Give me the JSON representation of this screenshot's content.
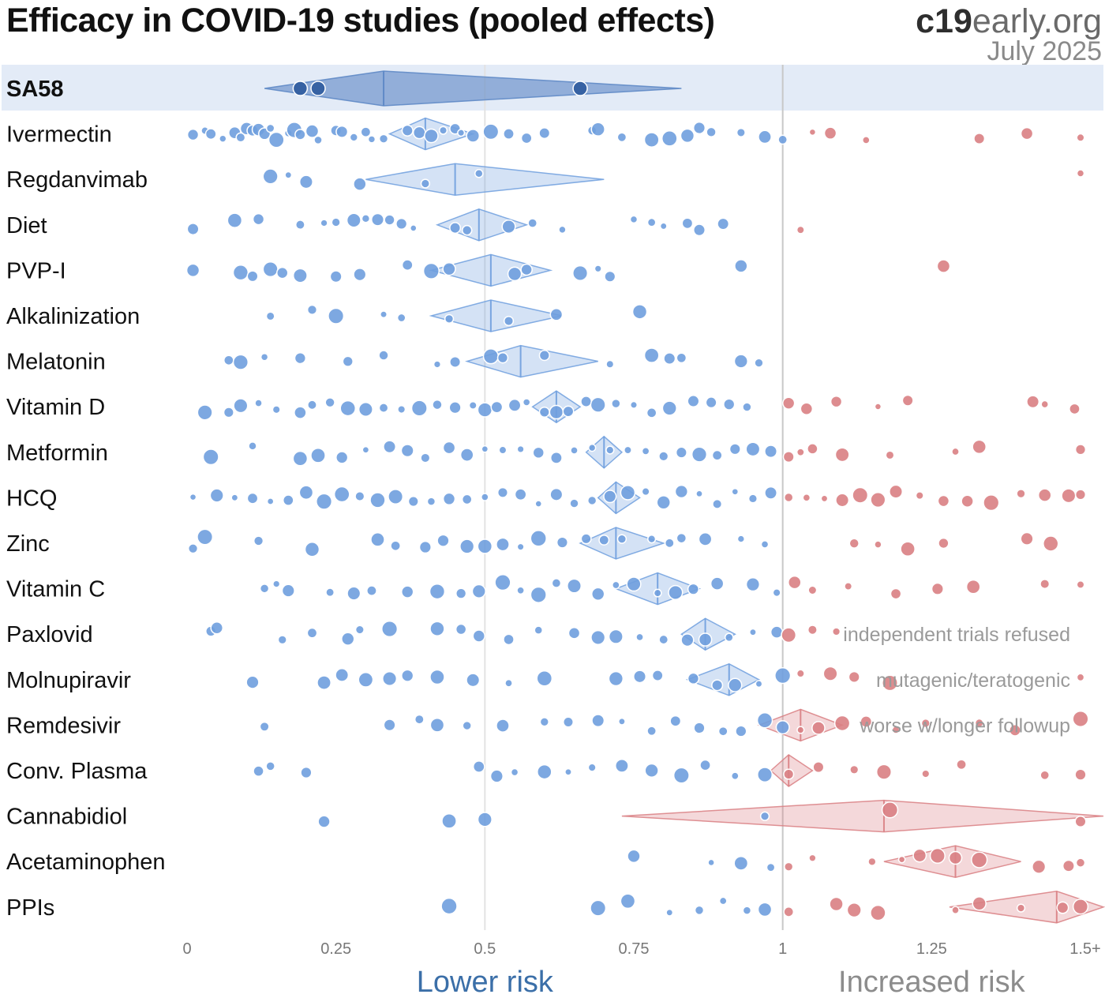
{
  "title": "Efficacy in COVID-19 studies (pooled effects)",
  "brand": {
    "name_bold": "c19",
    "name_rest": "early.org",
    "date": "July 2025"
  },
  "colors": {
    "benefit": "#6f9fde",
    "harm": "#d97f83",
    "highlight_row": "#e3ebf7",
    "highlight_diamond": "#5b86c4",
    "highlight_dot": "#2d5a9c"
  },
  "labels": {
    "lower_risk": "Lower risk",
    "increased_risk": "Increased risk"
  },
  "chart_data": {
    "type": "scatter",
    "title": "Efficacy in COVID-19 studies (pooled effects)",
    "xlim": [
      0,
      1.5
    ],
    "x_ticks": [
      {
        "value": 0,
        "label": "0"
      },
      {
        "value": 0.25,
        "label": "0.25"
      },
      {
        "value": 0.5,
        "label": "0.5"
      },
      {
        "value": 0.75,
        "label": "0.75"
      },
      {
        "value": 1,
        "label": "1"
      },
      {
        "value": 1.25,
        "label": "1.25"
      },
      {
        "value": 1.5,
        "label": "1.5+"
      }
    ],
    "rows": [
      {
        "name": "SA58",
        "highlight": true,
        "pooled": 0.33,
        "ci": [
          0.13,
          0.83
        ],
        "studies": [
          0.19,
          0.22,
          0.66
        ]
      },
      {
        "name": "Ivermectin",
        "pooled": 0.4,
        "ci": [
          0.34,
          0.48
        ],
        "studies": [
          0.01,
          0.03,
          0.04,
          0.06,
          0.08,
          0.09,
          0.1,
          0.11,
          0.12,
          0.13,
          0.14,
          0.15,
          0.17,
          0.18,
          0.19,
          0.21,
          0.22,
          0.25,
          0.26,
          0.28,
          0.3,
          0.31,
          0.33,
          0.37,
          0.39,
          0.41,
          0.43,
          0.45,
          0.46,
          0.48,
          0.51,
          0.54,
          0.57,
          0.6,
          0.68,
          0.69,
          0.73,
          0.78,
          0.81,
          0.84,
          0.86,
          0.88,
          0.93,
          0.97,
          1.0,
          1.05,
          1.08,
          1.14,
          1.33,
          1.41,
          1.5
        ]
      },
      {
        "name": "Regdanvimab",
        "pooled": 0.45,
        "ci": [
          0.3,
          0.7
        ],
        "studies": [
          0.14,
          0.17,
          0.2,
          0.29,
          0.4,
          0.49,
          1.5
        ]
      },
      {
        "name": "Diet",
        "pooled": 0.49,
        "ci": [
          0.42,
          0.57
        ],
        "studies": [
          0.01,
          0.08,
          0.12,
          0.19,
          0.23,
          0.25,
          0.28,
          0.3,
          0.32,
          0.34,
          0.36,
          0.38,
          0.45,
          0.47,
          0.54,
          0.58,
          0.63,
          0.75,
          0.78,
          0.8,
          0.84,
          0.86,
          0.9,
          1.03
        ]
      },
      {
        "name": "PVP-I",
        "pooled": 0.51,
        "ci": [
          0.41,
          0.61
        ],
        "studies": [
          0.01,
          0.09,
          0.11,
          0.14,
          0.16,
          0.19,
          0.25,
          0.29,
          0.37,
          0.41,
          0.44,
          0.55,
          0.57,
          0.66,
          0.69,
          0.71,
          0.93,
          1.27
        ]
      },
      {
        "name": "Alkalinization",
        "pooled": 0.51,
        "ci": [
          0.41,
          0.63
        ],
        "studies": [
          0.14,
          0.21,
          0.25,
          0.33,
          0.36,
          0.44,
          0.54,
          0.62,
          0.76
        ]
      },
      {
        "name": "Melatonin",
        "pooled": 0.56,
        "ci": [
          0.47,
          0.69
        ],
        "studies": [
          0.07,
          0.09,
          0.13,
          0.19,
          0.27,
          0.33,
          0.42,
          0.45,
          0.51,
          0.53,
          0.6,
          0.71,
          0.78,
          0.81,
          0.83,
          0.93,
          0.96
        ]
      },
      {
        "name": "Vitamin D",
        "pooled": 0.62,
        "ci": [
          0.58,
          0.66
        ],
        "studies": [
          0.03,
          0.07,
          0.09,
          0.12,
          0.15,
          0.19,
          0.21,
          0.24,
          0.27,
          0.3,
          0.33,
          0.36,
          0.39,
          0.42,
          0.45,
          0.48,
          0.5,
          0.52,
          0.55,
          0.57,
          0.6,
          0.62,
          0.64,
          0.67,
          0.69,
          0.72,
          0.75,
          0.78,
          0.81,
          0.85,
          0.88,
          0.91,
          0.94,
          1.01,
          1.04,
          1.09,
          1.16,
          1.21,
          1.42,
          1.44,
          1.49
        ]
      },
      {
        "name": "Metformin",
        "pooled": 0.7,
        "ci": [
          0.67,
          0.73
        ],
        "studies": [
          0.04,
          0.11,
          0.19,
          0.22,
          0.26,
          0.3,
          0.34,
          0.37,
          0.4,
          0.44,
          0.47,
          0.5,
          0.53,
          0.56,
          0.59,
          0.62,
          0.65,
          0.68,
          0.71,
          0.74,
          0.77,
          0.8,
          0.83,
          0.86,
          0.89,
          0.92,
          0.95,
          0.98,
          1.01,
          1.03,
          1.05,
          1.1,
          1.18,
          1.29,
          1.33,
          1.5
        ]
      },
      {
        "name": "HCQ",
        "pooled": 0.72,
        "ci": [
          0.69,
          0.76
        ],
        "studies": [
          0.01,
          0.05,
          0.08,
          0.11,
          0.14,
          0.17,
          0.2,
          0.23,
          0.26,
          0.29,
          0.32,
          0.35,
          0.38,
          0.41,
          0.44,
          0.47,
          0.5,
          0.53,
          0.56,
          0.59,
          0.62,
          0.65,
          0.68,
          0.71,
          0.74,
          0.77,
          0.8,
          0.83,
          0.86,
          0.89,
          0.92,
          0.95,
          0.98,
          1.01,
          1.04,
          1.07,
          1.1,
          1.13,
          1.16,
          1.19,
          1.23,
          1.27,
          1.31,
          1.35,
          1.4,
          1.44,
          1.48,
          1.5
        ]
      },
      {
        "name": "Zinc",
        "pooled": 0.72,
        "ci": [
          0.66,
          0.8
        ],
        "studies": [
          0.01,
          0.03,
          0.12,
          0.21,
          0.32,
          0.35,
          0.4,
          0.43,
          0.47,
          0.5,
          0.53,
          0.56,
          0.59,
          0.63,
          0.67,
          0.7,
          0.73,
          0.78,
          0.81,
          0.83,
          0.87,
          0.93,
          0.97,
          1.12,
          1.16,
          1.21,
          1.27,
          1.41,
          1.45
        ]
      },
      {
        "name": "Vitamin C",
        "pooled": 0.79,
        "ci": [
          0.72,
          0.86
        ],
        "studies": [
          0.13,
          0.15,
          0.17,
          0.24,
          0.28,
          0.31,
          0.37,
          0.42,
          0.46,
          0.49,
          0.53,
          0.56,
          0.59,
          0.62,
          0.65,
          0.69,
          0.72,
          0.75,
          0.79,
          0.82,
          0.85,
          0.89,
          0.95,
          0.99,
          1.02,
          1.05,
          1.11,
          1.19,
          1.26,
          1.32,
          1.44,
          1.5
        ]
      },
      {
        "name": "Paxlovid",
        "pooled": 0.87,
        "ci": [
          0.83,
          0.92
        ],
        "studies": [
          0.04,
          0.05,
          0.16,
          0.21,
          0.27,
          0.29,
          0.34,
          0.42,
          0.46,
          0.49,
          0.54,
          0.59,
          0.65,
          0.69,
          0.72,
          0.76,
          0.8,
          0.84,
          0.87,
          0.91,
          0.95,
          0.99,
          1.01,
          1.05,
          1.09
        ]
      },
      {
        "name": "Molnupiravir",
        "pooled": 0.91,
        "ci": [
          0.84,
          0.96
        ],
        "studies": [
          0.11,
          0.23,
          0.26,
          0.3,
          0.34,
          0.37,
          0.42,
          0.48,
          0.54,
          0.6,
          0.72,
          0.76,
          0.79,
          0.85,
          0.89,
          0.92,
          0.96,
          1.0,
          1.03,
          1.08,
          1.12,
          1.18,
          1.5
        ]
      },
      {
        "name": "Remdesivir",
        "pooled": 1.03,
        "ci": [
          0.96,
          1.1
        ],
        "studies": [
          0.13,
          0.34,
          0.39,
          0.42,
          0.47,
          0.53,
          0.6,
          0.64,
          0.69,
          0.73,
          0.78,
          0.82,
          0.86,
          0.9,
          0.93,
          0.97,
          1.0,
          1.03,
          1.06,
          1.1,
          1.14,
          1.19,
          1.24,
          1.33,
          1.39,
          1.5
        ]
      },
      {
        "name": "Conv. Plasma",
        "pooled": 1.01,
        "ci": [
          0.98,
          1.05
        ],
        "studies": [
          0.12,
          0.14,
          0.2,
          0.49,
          0.52,
          0.55,
          0.6,
          0.64,
          0.68,
          0.73,
          0.78,
          0.83,
          0.87,
          0.92,
          0.97,
          1.01,
          1.06,
          1.12,
          1.17,
          1.24,
          1.3,
          1.44,
          1.5
        ]
      },
      {
        "name": "Cannabidiol",
        "pooled": 1.17,
        "ci": [
          0.73,
          1.6
        ],
        "studies": [
          0.23,
          0.44,
          0.5,
          0.97,
          1.18,
          1.5
        ]
      },
      {
        "name": "Acetaminophen",
        "pooled": 1.29,
        "ci": [
          1.17,
          1.4
        ],
        "studies": [
          0.75,
          0.88,
          0.93,
          0.98,
          1.01,
          1.05,
          1.15,
          1.2,
          1.23,
          1.26,
          1.29,
          1.33,
          1.43,
          1.48,
          1.5
        ]
      },
      {
        "name": "PPIs",
        "pooled": 1.46,
        "ci": [
          1.28,
          1.6
        ],
        "studies": [
          0.44,
          0.69,
          0.74,
          0.81,
          0.86,
          0.9,
          0.94,
          0.97,
          1.01,
          1.09,
          1.12,
          1.16,
          1.29,
          1.33,
          1.4,
          1.47,
          1.5
        ]
      }
    ],
    "annotations": [
      {
        "row": "Paxlovid",
        "text": "independent trials refused"
      },
      {
        "row": "Molnupiravir",
        "text": "mutagenic/teratogenic"
      },
      {
        "row": "Remdesivir",
        "text": "worse w/longer followup"
      }
    ]
  }
}
